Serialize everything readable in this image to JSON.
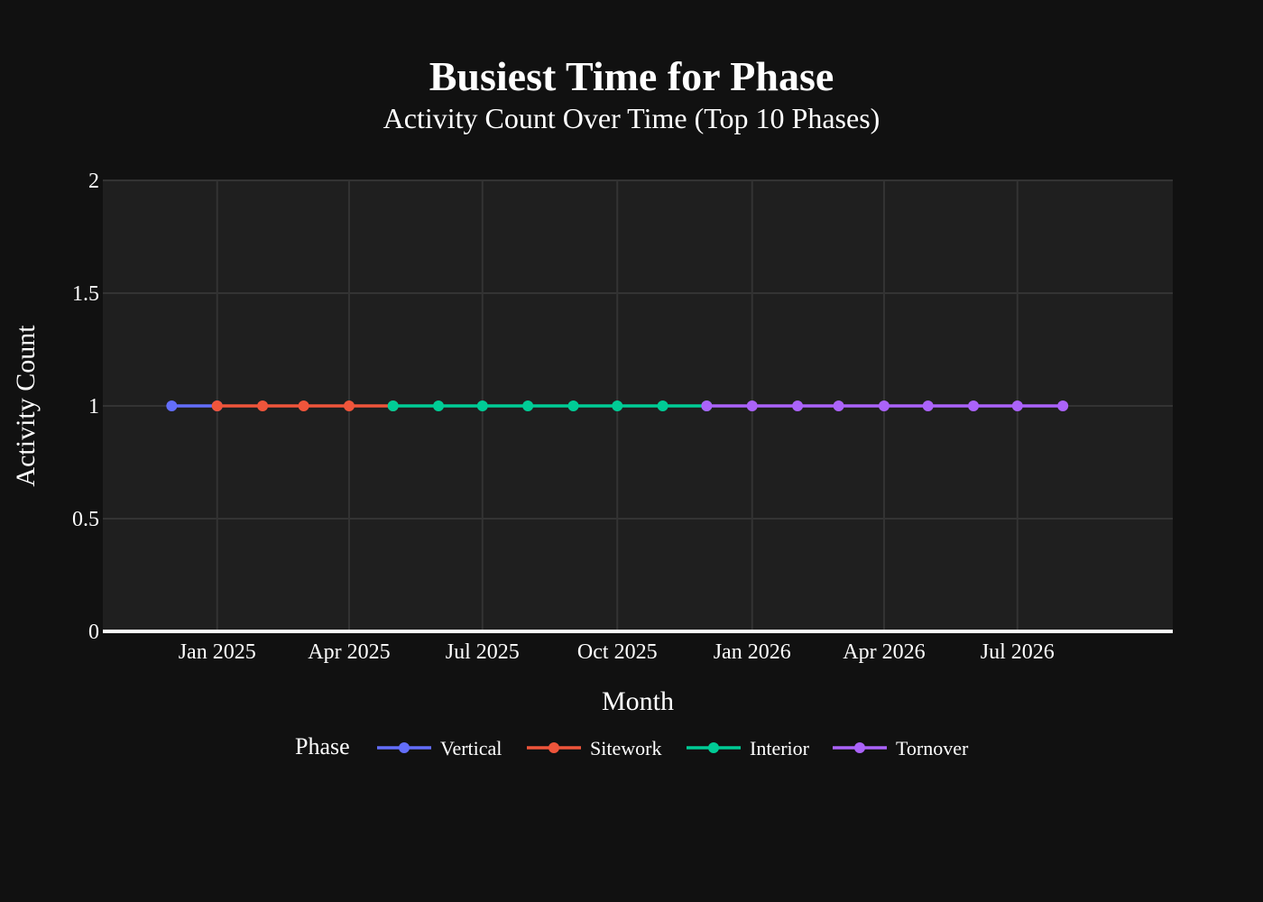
{
  "chart_data": {
    "type": "line",
    "title": "Busiest Time for Phase",
    "subtitle": "Activity Count Over Time (Top 10 Phases)",
    "xlabel": "Month",
    "ylabel": "Activity Count",
    "xlim": [
      "2024-10-15",
      "2026-10-15"
    ],
    "ylim": [
      0,
      2
    ],
    "x_ticks": [
      {
        "date": "2025-01-01",
        "label": "Jan 2025"
      },
      {
        "date": "2025-04-01",
        "label": "Apr 2025"
      },
      {
        "date": "2025-07-01",
        "label": "Jul 2025"
      },
      {
        "date": "2025-10-01",
        "label": "Oct 2025"
      },
      {
        "date": "2026-01-01",
        "label": "Jan 2026"
      },
      {
        "date": "2026-04-01",
        "label": "Apr 2026"
      },
      {
        "date": "2026-07-01",
        "label": "Jul 2026"
      }
    ],
    "y_ticks": [
      {
        "value": 0,
        "label": "0"
      },
      {
        "value": 0.5,
        "label": "0.5"
      },
      {
        "value": 1,
        "label": "1"
      },
      {
        "value": 1.5,
        "label": "1.5"
      },
      {
        "value": 2,
        "label": "2"
      }
    ],
    "grid": true,
    "legend": {
      "title": "Phase",
      "placement": "bottom-center",
      "orientation": "horizontal"
    },
    "series": [
      {
        "name": "Vertical",
        "color": "#636efa",
        "points": [
          {
            "x": "2024-12-01",
            "y": 1
          },
          {
            "x": "2025-01-01",
            "y": 1
          }
        ]
      },
      {
        "name": "Sitework",
        "color": "#ef553b",
        "points": [
          {
            "x": "2025-01-01",
            "y": 1
          },
          {
            "x": "2025-02-01",
            "y": 1
          },
          {
            "x": "2025-03-01",
            "y": 1
          },
          {
            "x": "2025-04-01",
            "y": 1
          },
          {
            "x": "2025-05-01",
            "y": 1
          }
        ]
      },
      {
        "name": "Interior",
        "color": "#00cc96",
        "points": [
          {
            "x": "2025-05-01",
            "y": 1
          },
          {
            "x": "2025-06-01",
            "y": 1
          },
          {
            "x": "2025-07-01",
            "y": 1
          },
          {
            "x": "2025-08-01",
            "y": 1
          },
          {
            "x": "2025-09-01",
            "y": 1
          },
          {
            "x": "2025-10-01",
            "y": 1
          },
          {
            "x": "2025-11-01",
            "y": 1
          },
          {
            "x": "2025-12-01",
            "y": 1
          }
        ]
      },
      {
        "name": "Tornover",
        "color": "#ab63fa",
        "points": [
          {
            "x": "2025-12-01",
            "y": 1
          },
          {
            "x": "2026-01-01",
            "y": 1
          },
          {
            "x": "2026-02-01",
            "y": 1
          },
          {
            "x": "2026-03-01",
            "y": 1
          },
          {
            "x": "2026-04-01",
            "y": 1
          },
          {
            "x": "2026-05-01",
            "y": 1
          },
          {
            "x": "2026-06-01",
            "y": 1
          },
          {
            "x": "2026-07-01",
            "y": 1
          },
          {
            "x": "2026-08-01",
            "y": 1
          }
        ]
      }
    ],
    "colors": {
      "page_background": "#111111",
      "plot_background": "#1f1f1f",
      "grid": "#333333",
      "zero_line": "#ffffff",
      "text": "#ffffff"
    }
  }
}
